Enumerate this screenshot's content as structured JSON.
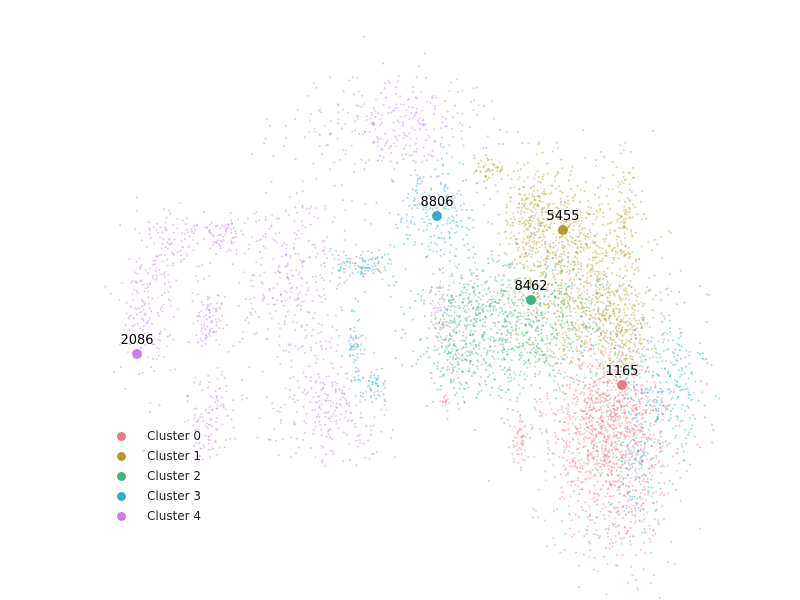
{
  "chart_data": {
    "type": "scatter",
    "title": "",
    "xlabel": "",
    "ylabel": "",
    "axes_visible": false,
    "grid": false,
    "legend_placement": "lower-left",
    "series": [
      {
        "name": "Cluster 0",
        "color": "#f07787",
        "centroid": {
          "label": "1165",
          "x": 622,
          "y": 385
        },
        "blobs": [
          [
            610,
            455,
            30,
            55,
            900
          ],
          [
            595,
            420,
            20,
            30,
            250
          ],
          [
            625,
            410,
            18,
            25,
            200
          ],
          [
            520,
            440,
            5,
            12,
            60
          ],
          [
            444,
            400,
            3,
            4,
            15
          ]
        ]
      },
      {
        "name": "Cluster 1",
        "color": "#b39b2c",
        "centroid": {
          "label": "5455",
          "x": 563,
          "y": 230
        },
        "blobs": [
          [
            580,
            275,
            35,
            50,
            900
          ],
          [
            535,
            215,
            20,
            25,
            250
          ],
          [
            620,
            330,
            20,
            20,
            250
          ],
          [
            625,
            212,
            5,
            22,
            60
          ],
          [
            490,
            168,
            8,
            7,
            50
          ]
        ]
      },
      {
        "name": "Cluster 2",
        "color": "#3cb482",
        "centroid": {
          "label": "8462",
          "x": 531,
          "y": 300
        },
        "blobs": [
          [
            515,
            325,
            45,
            35,
            900
          ],
          [
            455,
            350,
            12,
            25,
            150
          ],
          [
            470,
            300,
            15,
            15,
            100
          ]
        ]
      },
      {
        "name": "Cluster 3",
        "color": "#37aac8",
        "centroid": {
          "label": "8806",
          "x": 437,
          "y": 216
        },
        "blobs": [
          [
            435,
            210,
            22,
            25,
            200
          ],
          [
            665,
            390,
            22,
            35,
            300
          ],
          [
            635,
            470,
            12,
            30,
            150
          ],
          [
            365,
            265,
            14,
            8,
            100
          ],
          [
            355,
            350,
            4,
            20,
            60
          ],
          [
            375,
            385,
            6,
            10,
            40
          ]
        ]
      },
      {
        "name": "Cluster 4",
        "color": "#c87de9",
        "centroid": {
          "label": "2086",
          "x": 137,
          "y": 354
        },
        "blobs": [
          [
            395,
            125,
            45,
            25,
            300
          ],
          [
            290,
            280,
            35,
            45,
            350
          ],
          [
            330,
            405,
            30,
            30,
            250
          ],
          [
            175,
            240,
            15,
            15,
            80
          ],
          [
            225,
            235,
            10,
            10,
            60
          ],
          [
            210,
            320,
            8,
            15,
            80
          ],
          [
            150,
            300,
            15,
            40,
            180
          ],
          [
            210,
            420,
            15,
            25,
            120
          ],
          [
            440,
            312,
            5,
            15,
            60
          ]
        ]
      }
    ]
  }
}
